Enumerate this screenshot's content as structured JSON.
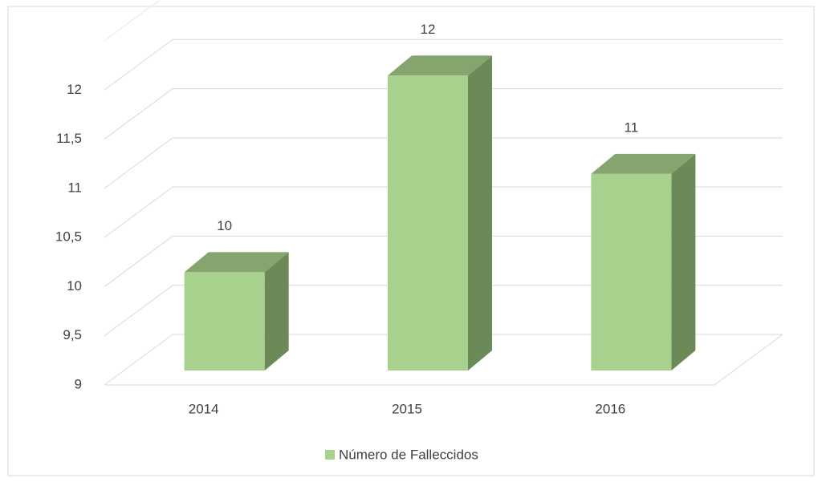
{
  "chart_data": {
    "type": "bar3d",
    "categories": [
      "2014",
      "2015",
      "2016"
    ],
    "series": [
      {
        "name": "Número de Falleccidos",
        "color": "#a9d18e",
        "values": [
          10,
          12,
          11
        ]
      }
    ],
    "ylim": [
      9,
      12.5
    ],
    "yticks": [
      9,
      {
        "value": 9.5,
        "label": "9,5"
      },
      10,
      {
        "value": 10.5,
        "label": "10,5"
      },
      11,
      {
        "value": 11.5,
        "label": "11,5"
      },
      12
    ],
    "grid": true,
    "legend": "bottom"
  }
}
